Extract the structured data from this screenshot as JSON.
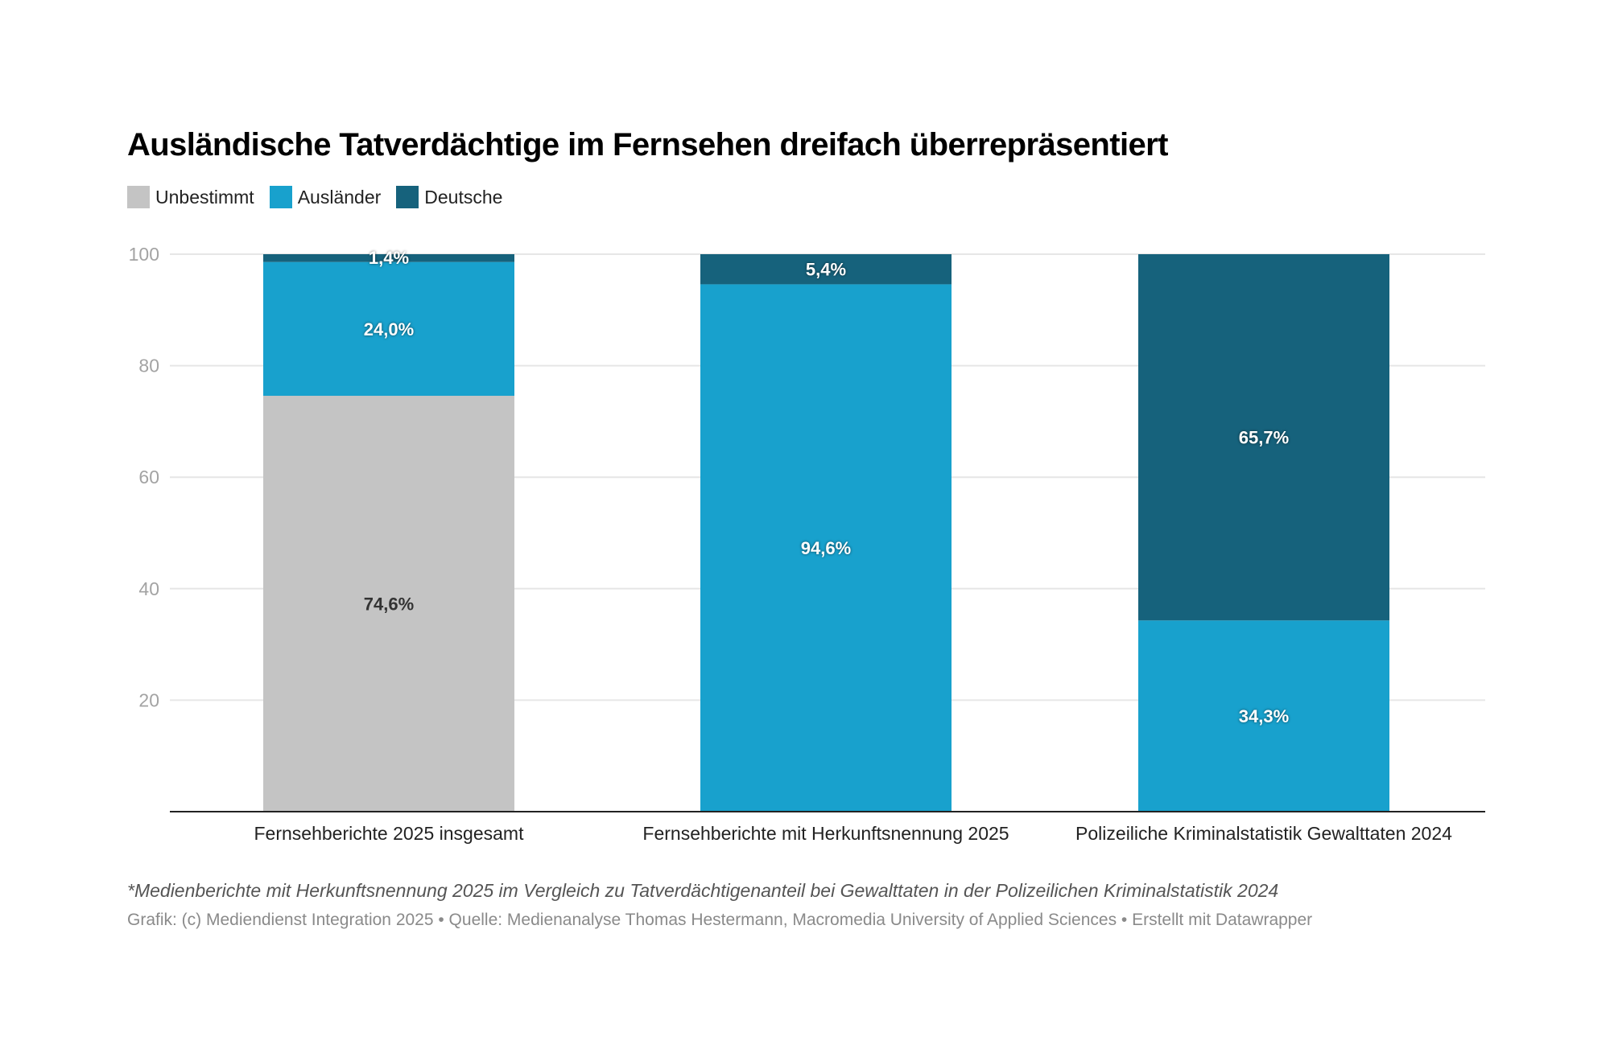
{
  "chart_data": {
    "type": "bar",
    "stacked": true,
    "title": "Ausländische Tatverdächtige im Fernsehen dreifach überrepräsentiert",
    "xlabel": "",
    "ylabel": "",
    "ylim": [
      0,
      100
    ],
    "yticks": [
      20,
      40,
      60,
      80,
      100
    ],
    "grid": true,
    "legend_position": "top-left",
    "categories": [
      "Fernsehberichte 2025 insgesamt",
      "Fernsehberichte mit Herkunftsnennung 2025",
      "Polizeiliche Kriminalstatistik Gewalttaten 2024"
    ],
    "series": [
      {
        "name": "Unbestimmt",
        "color": "#c4c4c4",
        "label_color": "#333333",
        "values": [
          74.6,
          0,
          0
        ],
        "labels": [
          "74,6%",
          "",
          ""
        ]
      },
      {
        "name": "Ausländer",
        "color": "#18a1cd",
        "label_color": "#ffffff",
        "values": [
          24.0,
          94.6,
          34.3
        ],
        "labels": [
          "24,0%",
          "94,6%",
          "34,3%"
        ]
      },
      {
        "name": "Deutsche",
        "color": "#16627c",
        "label_color": "#ffffff",
        "values": [
          1.4,
          5.4,
          65.7
        ],
        "labels": [
          "1,4%",
          "5,4%",
          "65,7%"
        ]
      }
    ]
  },
  "footer": {
    "note": "*Medienberichte mit Herkunftsnennung 2025 im Vergleich zu Tatverdächtigenanteil bei Gewalttaten in der Polizeilichen Kriminalstatistik 2024",
    "source": "Grafik: (c) Mediendienst Integration 2025 • Quelle: Medienanalyse Thomas Hestermann, Macromedia University of Applied Sciences • Erstellt mit Datawrapper"
  }
}
